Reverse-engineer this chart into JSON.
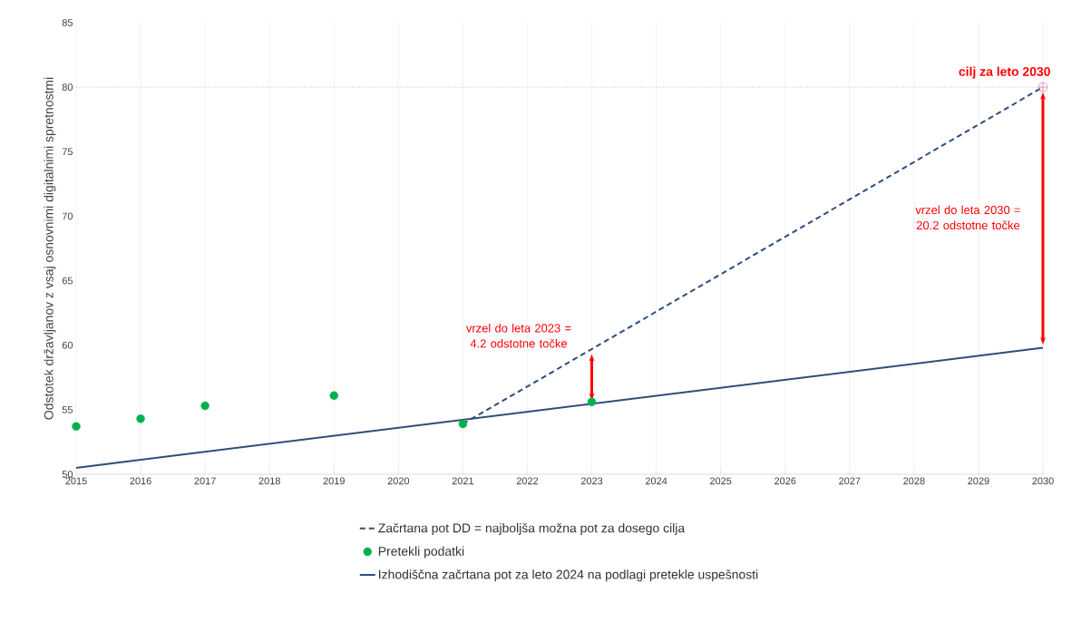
{
  "chart_data": {
    "type": "line",
    "ylabel": "Odstotek državljanov z vsaj osnovnimi digitalnimi spretnostmi",
    "xlim": [
      2015,
      2030
    ],
    "xticks": [
      2015,
      2016,
      2017,
      2018,
      2019,
      2020,
      2021,
      2022,
      2023,
      2024,
      2025,
      2026,
      2027,
      2028,
      2029,
      2030
    ],
    "ylim": [
      50,
      85
    ],
    "yticks": [
      50,
      55,
      60,
      65,
      70,
      75,
      80,
      85
    ],
    "grid": "x",
    "legend": "bottom",
    "series": [
      {
        "name": "Začrtana pot DD = najboljša možna pot za dosego cilja",
        "line_style": "dashed",
        "color": "#2e4d7b",
        "x": [
          2021,
          2030
        ],
        "values": [
          53.9,
          80
        ]
      },
      {
        "name": "Pretekli podatki",
        "type": "scatter",
        "marker": "circle",
        "color": "#00b050",
        "x": [
          2015,
          2016,
          2017,
          2019,
          2021,
          2023
        ],
        "values": [
          53.7,
          54.3,
          55.3,
          56.1,
          53.9,
          55.6
        ]
      },
      {
        "name": "Izhodiščna začrtana pot za leto 2024 na podlagi pretekle uspešnosti",
        "line_style": "solid",
        "color": "#2e4d7b",
        "x": [
          2015,
          2030
        ],
        "values": [
          50.5,
          59.8
        ]
      },
      {
        "type": "scatter",
        "marker": "cross",
        "color": "#e87fb5",
        "x": [
          2030
        ],
        "values": [
          80
        ]
      }
    ],
    "ref_lines": [
      {
        "axis": "y",
        "value": 80,
        "color": "#a0a0a0",
        "line_style": "dotted"
      }
    ],
    "annotations": [
      {
        "text": "cilj za leto 2030",
        "x": 2030,
        "y": 80
      },
      {
        "text": "vrzel do leta 2023 = 4.2 odstotne točke",
        "x": 2023,
        "y": 59.7
      },
      "vrzel do leta 2030 = 20.2 odstotne točke"
    ]
  }
}
